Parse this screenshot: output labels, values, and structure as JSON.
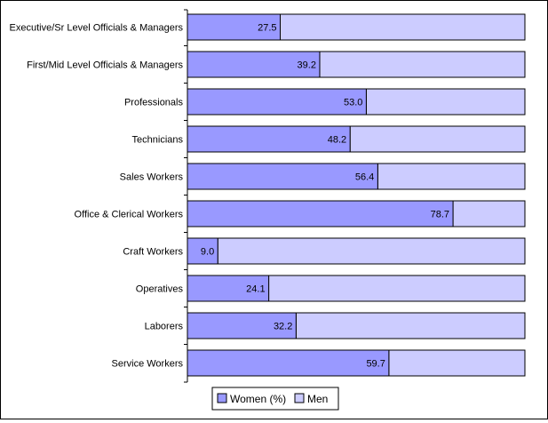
{
  "chart_data": {
    "type": "bar",
    "orientation": "horizontal",
    "stacked": true,
    "categories": [
      "Executive/Sr Level Officials & Managers",
      "First/Mid Level Officials & Managers",
      "Professionals",
      "Technicians",
      "Sales Workers",
      "Office & Clerical Workers",
      "Craft Workers",
      "Operatives",
      "Laborers",
      "Service Workers"
    ],
    "series": [
      {
        "name": "Women (%)",
        "values": [
          27.5,
          39.2,
          53.0,
          48.2,
          56.4,
          78.7,
          9.0,
          24.1,
          32.2,
          59.7
        ],
        "color": "#9999ff"
      },
      {
        "name": "Men",
        "values": [
          72.5,
          60.8,
          47.0,
          51.8,
          43.6,
          21.3,
          91.0,
          75.9,
          67.8,
          40.3
        ],
        "color": "#ccccff"
      }
    ],
    "data_labels": [
      "27.5",
      "39.2",
      "53.0",
      "48.2",
      "56.4",
      "78.7",
      "9.0",
      "24.1",
      "32.2",
      "59.7"
    ],
    "xlim": [
      0,
      100
    ],
    "grid": false,
    "legend_position": "bottom"
  }
}
